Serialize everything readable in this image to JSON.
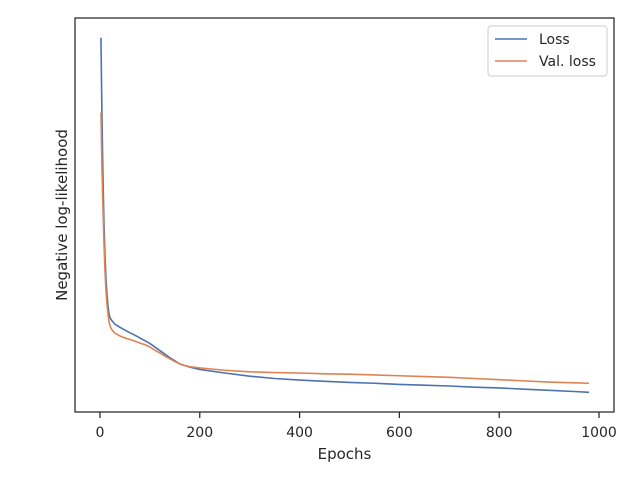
{
  "chart_data": {
    "type": "line",
    "xlabel": "Epochs",
    "ylabel": "Negative log-likelihood",
    "xlim": [
      -50,
      1030
    ],
    "ylim": [
      0,
      100
    ],
    "xticks": [
      0,
      200,
      400,
      600,
      800,
      1000
    ],
    "yticks": [],
    "grid": false,
    "legend_position": "top-right",
    "series": [
      {
        "name": "Loss",
        "color": "#4c72b0",
        "x": [
          2,
          4,
          6,
          8,
          10,
          12,
          14,
          16,
          18,
          20,
          22,
          25,
          30,
          40,
          50,
          60,
          70,
          80,
          90,
          100,
          120,
          140,
          160,
          180,
          200,
          250,
          300,
          350,
          400,
          450,
          500,
          550,
          600,
          650,
          700,
          750,
          800,
          850,
          900,
          950,
          980
        ],
        "y": [
          95,
          75,
          60,
          48,
          40,
          34,
          30,
          27,
          25,
          24,
          23.5,
          23,
          22.3,
          21.5,
          20.8,
          20.1,
          19.5,
          18.8,
          18.1,
          17.4,
          15.6,
          13.8,
          12.2,
          11.4,
          10.8,
          9.9,
          9.1,
          8.5,
          8.1,
          7.8,
          7.5,
          7.3,
          7.0,
          6.8,
          6.6,
          6.3,
          6.1,
          5.8,
          5.5,
          5.2,
          5.0
        ]
      },
      {
        "name": "Val. loss",
        "color": "#dd8452",
        "x": [
          2,
          4,
          6,
          8,
          10,
          12,
          14,
          16,
          18,
          20,
          22,
          25,
          30,
          40,
          50,
          60,
          70,
          80,
          90,
          100,
          110,
          120,
          130,
          140,
          150,
          160,
          170,
          180,
          200,
          250,
          300,
          350,
          400,
          450,
          500,
          550,
          600,
          650,
          700,
          750,
          800,
          850,
          900,
          950,
          980
        ],
        "y": [
          76,
          62,
          52,
          43,
          36,
          31,
          27.5,
          25,
          23,
          22,
          21.3,
          20.7,
          20.0,
          19.3,
          18.8,
          18.4,
          18.0,
          17.5,
          17.1,
          16.5,
          15.7,
          15.0,
          14.2,
          13.5,
          12.8,
          12.2,
          11.8,
          11.5,
          11.2,
          10.6,
          10.2,
          10.0,
          9.9,
          9.7,
          9.6,
          9.4,
          9.2,
          9.0,
          8.8,
          8.5,
          8.2,
          7.9,
          7.6,
          7.4,
          7.3
        ]
      }
    ]
  }
}
